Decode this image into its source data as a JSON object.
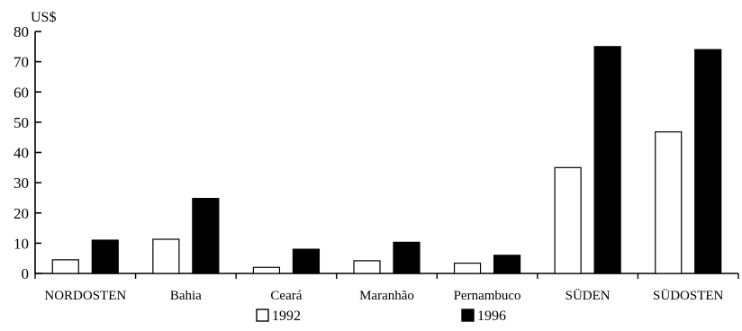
{
  "chart_data": {
    "type": "bar",
    "ylabel": "US$",
    "ylim": [
      0,
      80
    ],
    "yticks": [
      0,
      10,
      20,
      30,
      40,
      50,
      60,
      70,
      80
    ],
    "grid": false,
    "legend_position": "bottom",
    "categories": [
      "NORDOSTEN",
      "Bahia",
      "Ceará",
      "Maranhão",
      "Pernambuco",
      "SÜDEN",
      "SÜDOSTEN"
    ],
    "series": [
      {
        "name": "1992",
        "color": "#ffffff",
        "values": [
          4.5,
          11.3,
          2.0,
          4.2,
          3.4,
          35.0,
          46.8
        ]
      },
      {
        "name": "1996",
        "color": "#000000",
        "values": [
          11.0,
          24.8,
          8.0,
          10.3,
          6.0,
          75.0,
          74.0
        ]
      }
    ]
  }
}
